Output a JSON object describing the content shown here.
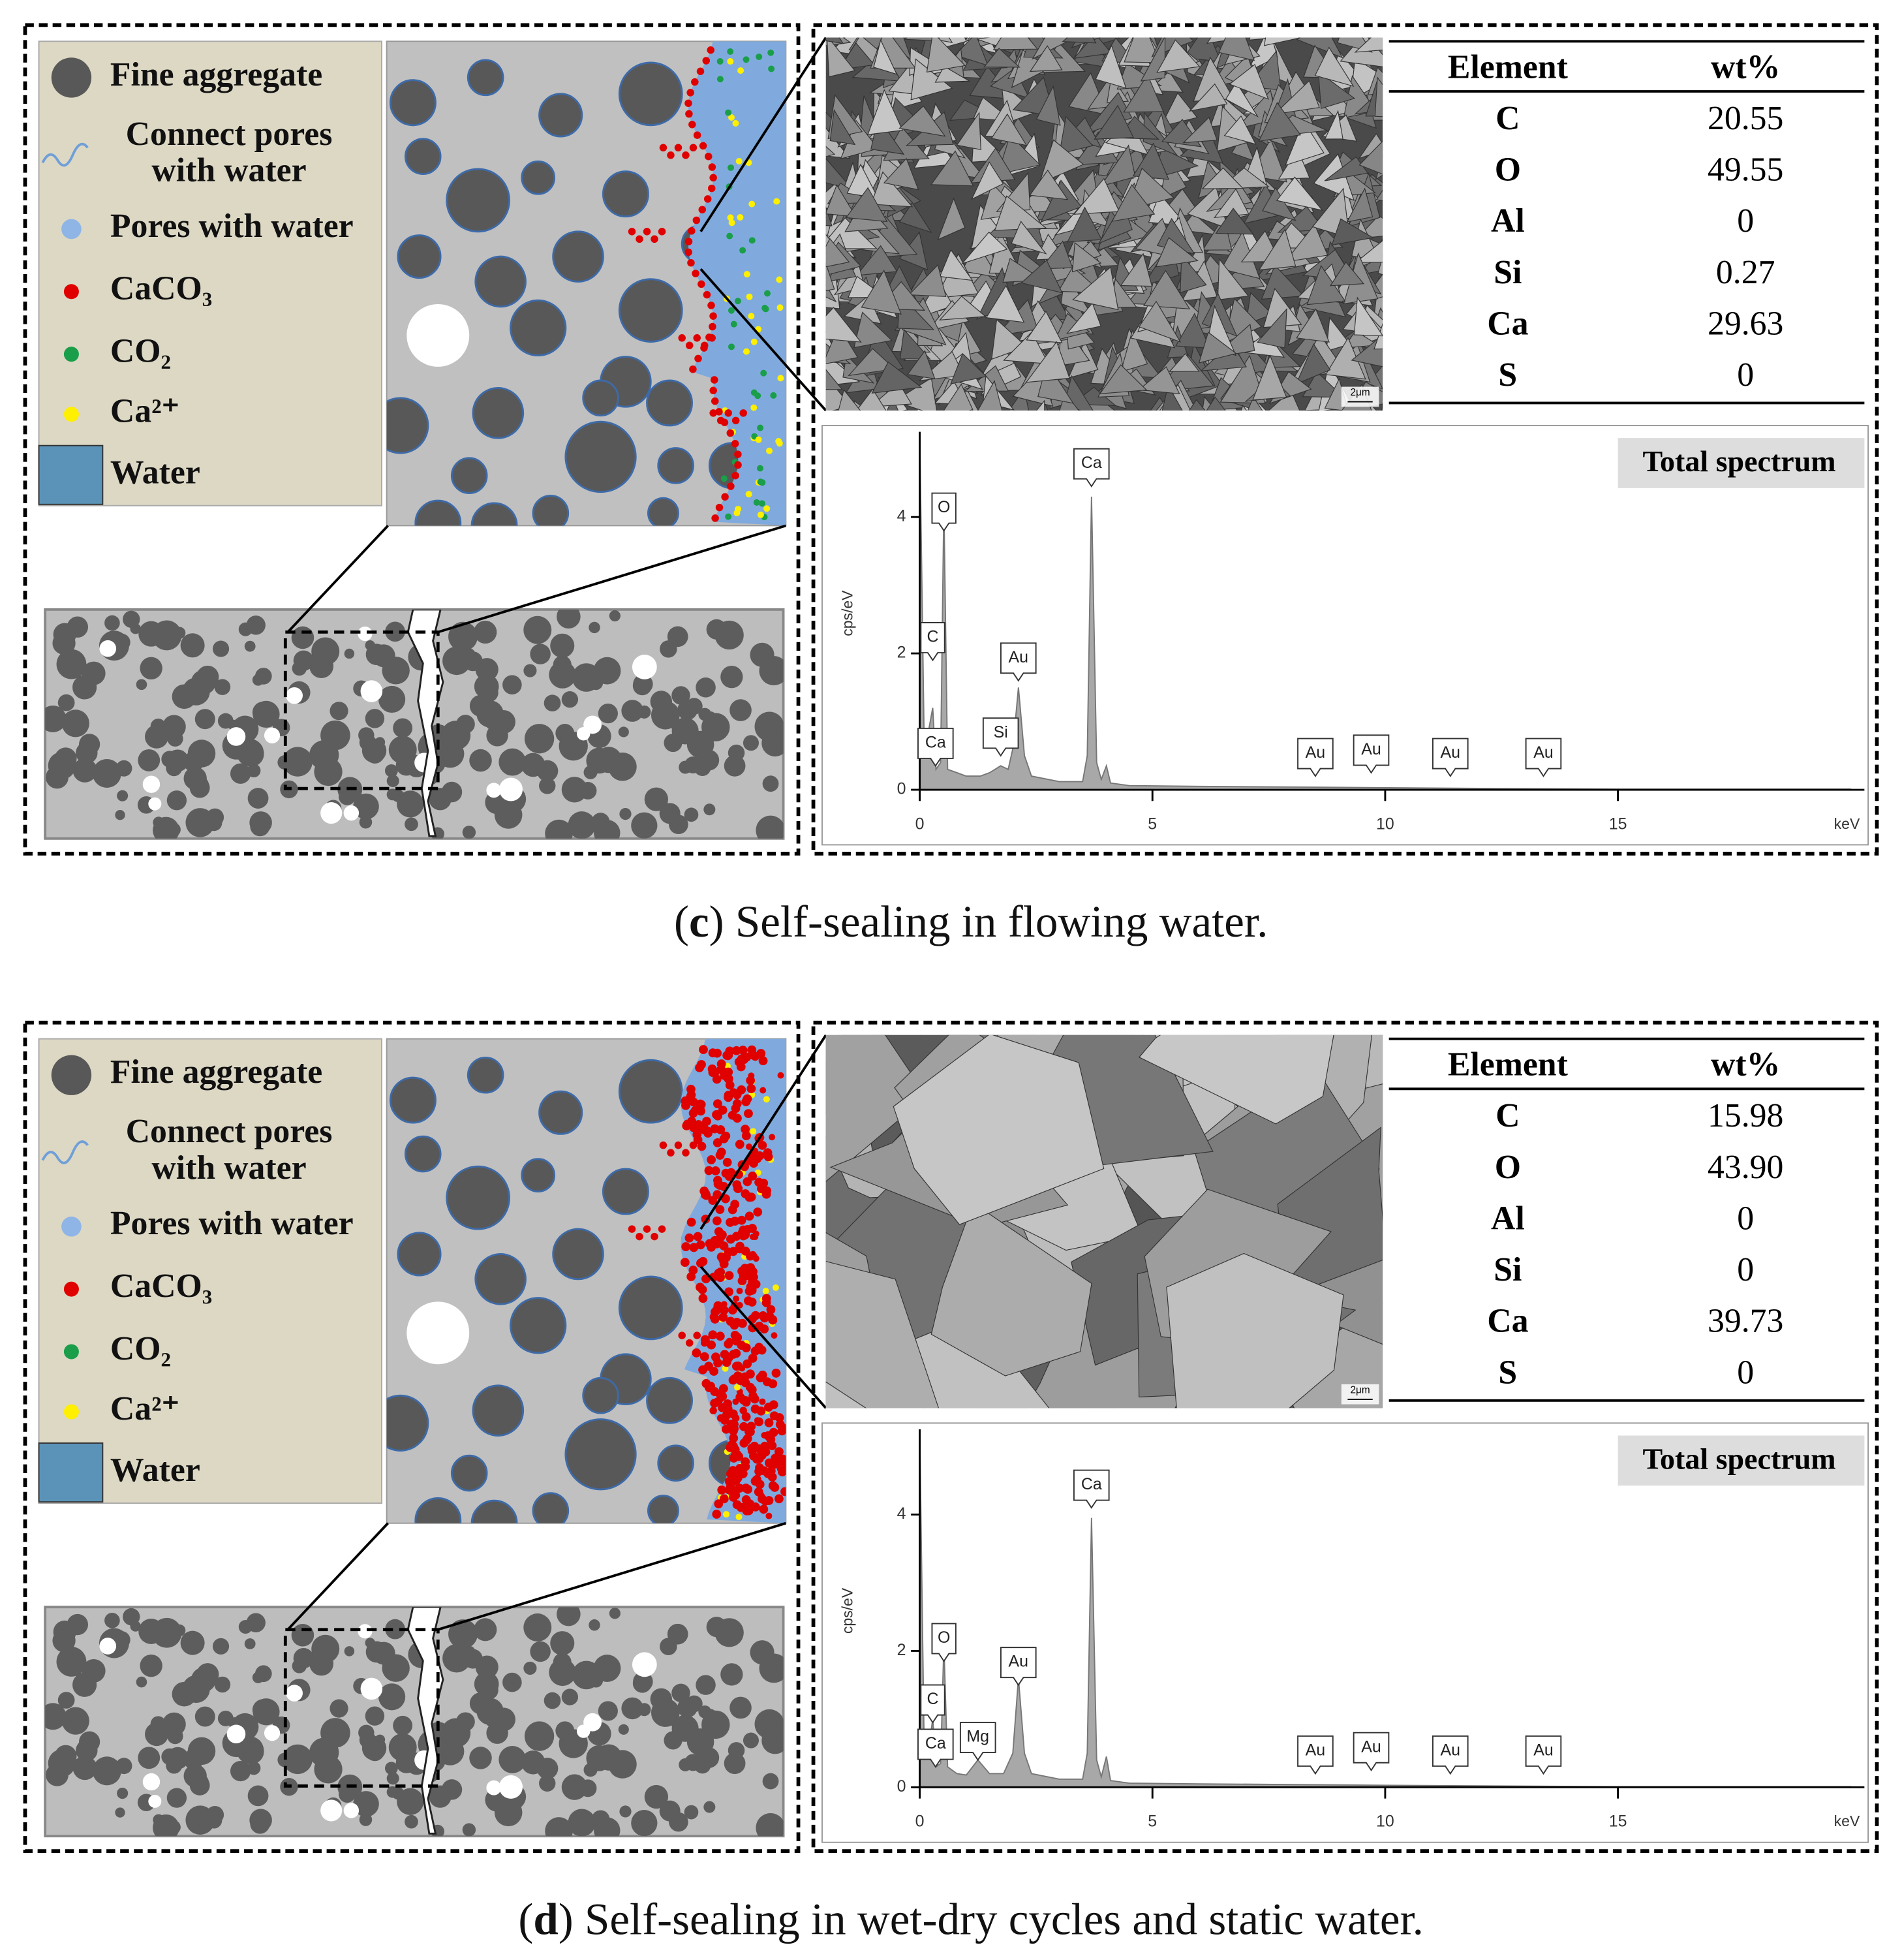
{
  "panels": [
    {
      "legend": [
        [
          "Fine aggregate"
        ],
        [
          "Connect pores",
          "with water"
        ],
        [
          "Pores with water"
        ],
        [
          "CaCO₃"
        ],
        [
          "CO₂"
        ],
        [
          "Ca²⁺"
        ],
        [
          "Water"
        ]
      ],
      "table": {
        "header": [
          "Element",
          "wt%"
        ],
        "rows": [
          [
            "C",
            "20.55"
          ],
          [
            "O",
            "49.55"
          ],
          [
            "Al",
            "0"
          ],
          [
            "Si",
            "0.27"
          ],
          [
            "Ca",
            "29.63"
          ],
          [
            "S",
            "0"
          ]
        ]
      },
      "scale_bar": "2μm",
      "chart_data": {
        "type": "area",
        "title": "Total spectrum",
        "x_label": "keV",
        "y_label": "cps/eV",
        "color": "#a8a8a8",
        "x": [
          0,
          0.1,
          0.2,
          0.28,
          0.35,
          0.45,
          0.52,
          0.6,
          0.8,
          1.0,
          1.3,
          1.5,
          1.74,
          1.9,
          2.0,
          2.12,
          2.25,
          2.4,
          3.0,
          3.5,
          3.6,
          3.69,
          3.8,
          3.9,
          4.01,
          4.1,
          4.5,
          6,
          8,
          10,
          12,
          15,
          20
        ],
        "values": [
          5.25,
          0.5,
          0.9,
          1.2,
          0.3,
          0.4,
          4.2,
          0.3,
          0.25,
          0.2,
          0.2,
          0.25,
          0.35,
          0.3,
          0.6,
          1.5,
          0.5,
          0.2,
          0.12,
          0.12,
          0.5,
          4.3,
          0.4,
          0.15,
          0.35,
          0.1,
          0.06,
          0.05,
          0.04,
          0.03,
          0.02,
          0.01,
          0.01
        ],
        "xlim": [
          0,
          20
        ],
        "ylim": [
          0,
          5.25
        ],
        "xticks": [
          0,
          5,
          10,
          15
        ],
        "yticks": [
          0,
          2,
          4
        ],
        "annotations": [
          {
            "label": "C",
            "x": 0.28,
            "y": 1.9
          },
          {
            "label": "O",
            "x": 0.52,
            "y": 3.8
          },
          {
            "label": "Ca",
            "x": 0.34,
            "y": 0.35
          },
          {
            "label": "Si",
            "x": 1.74,
            "y": 0.5
          },
          {
            "label": "Au",
            "x": 2.12,
            "y": 1.6
          },
          {
            "label": "Ca",
            "x": 3.69,
            "y": 4.45
          },
          {
            "label": "Au",
            "x": 8.5,
            "y": 0.2
          },
          {
            "label": "Au",
            "x": 9.7,
            "y": 0.25
          },
          {
            "label": "Au",
            "x": 11.4,
            "y": 0.2
          },
          {
            "label": "Au",
            "x": 13.4,
            "y": 0.2
          }
        ]
      },
      "caption": [
        "(",
        "c",
        ") Self-sealing in flowing water."
      ]
    },
    {
      "legend": [
        [
          "Fine aggregate"
        ],
        [
          "Connect pores",
          "with water"
        ],
        [
          "Pores with water"
        ],
        [
          "CaCO₃"
        ],
        [
          "CO₂"
        ],
        [
          "Ca²⁺"
        ],
        [
          "Water"
        ]
      ],
      "table": {
        "header": [
          "Element",
          "wt%"
        ],
        "rows": [
          [
            "C",
            "15.98"
          ],
          [
            "O",
            "43.90"
          ],
          [
            "Al",
            "0"
          ],
          [
            "Si",
            "0"
          ],
          [
            "Ca",
            "39.73"
          ],
          [
            "S",
            "0"
          ]
        ]
      },
      "scale_bar": "2μm",
      "chart_data": {
        "type": "area",
        "title": "Total spectrum",
        "x_label": "keV",
        "y_label": "cps/eV",
        "color": "#a8a8a8",
        "x": [
          0,
          0.1,
          0.2,
          0.28,
          0.35,
          0.45,
          0.52,
          0.6,
          0.8,
          1.0,
          1.25,
          1.5,
          1.8,
          2.0,
          2.12,
          2.25,
          2.4,
          3.0,
          3.5,
          3.6,
          3.69,
          3.8,
          3.9,
          4.01,
          4.1,
          4.5,
          6,
          8,
          10,
          12,
          15,
          20
        ],
        "values": [
          5.25,
          0.4,
          0.6,
          1.0,
          0.3,
          0.35,
          2.1,
          0.3,
          0.2,
          0.18,
          0.4,
          0.2,
          0.2,
          0.5,
          1.6,
          0.5,
          0.2,
          0.12,
          0.12,
          0.5,
          3.95,
          0.4,
          0.15,
          0.45,
          0.1,
          0.06,
          0.05,
          0.04,
          0.03,
          0.02,
          0.01,
          0.01
        ],
        "xlim": [
          0,
          20
        ],
        "ylim": [
          0,
          5.25
        ],
        "xticks": [
          0,
          5,
          10,
          15
        ],
        "yticks": [
          0,
          2,
          4
        ],
        "annotations": [
          {
            "label": "C",
            "x": 0.28,
            "y": 0.95
          },
          {
            "label": "O",
            "x": 0.52,
            "y": 1.85
          },
          {
            "label": "Ca",
            "x": 0.34,
            "y": 0.3
          },
          {
            "label": "Mg",
            "x": 1.25,
            "y": 0.4
          },
          {
            "label": "Au",
            "x": 2.12,
            "y": 1.5
          },
          {
            "label": "Ca",
            "x": 3.69,
            "y": 4.1
          },
          {
            "label": "Au",
            "x": 8.5,
            "y": 0.2
          },
          {
            "label": "Au",
            "x": 9.7,
            "y": 0.25
          },
          {
            "label": "Au",
            "x": 11.4,
            "y": 0.2
          },
          {
            "label": "Au",
            "x": 13.4,
            "y": 0.2
          }
        ]
      },
      "caption": [
        "(",
        "d",
        ") Self-sealing in wet-dry cycles and static water."
      ]
    }
  ]
}
